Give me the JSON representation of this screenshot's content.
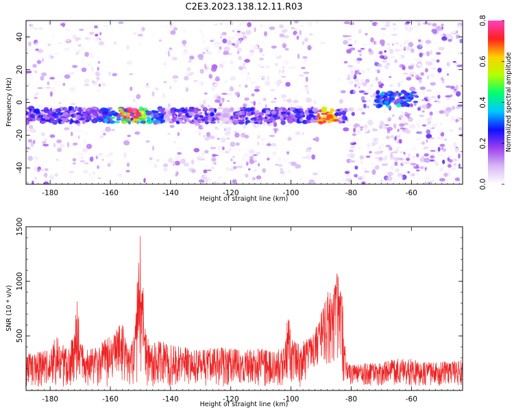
{
  "figure": {
    "title": "C2E3.2023.138.12.11.R03"
  },
  "chart_data": [
    {
      "type": "heatmap",
      "xlabel": "Height of straight line (km)",
      "ylabel": "Frequency (Hz)",
      "xlim": [
        -188,
        -43
      ],
      "ylim": [
        -50,
        50
      ],
      "xticks": [
        -180,
        -160,
        -140,
        -120,
        -100,
        -80,
        -60
      ],
      "yticks": [
        -40,
        -20,
        0,
        20,
        40
      ],
      "colorbar": {
        "label": "Normalized spectral amplitude",
        "range": [
          0.0,
          0.8
        ],
        "ticks": [
          0.0,
          0.2,
          0.4,
          0.6,
          0.8
        ],
        "colors": [
          "#ffffff",
          "#d8b8f4",
          "#9a40ee",
          "#1010ff",
          "#00c8ff",
          "#00ff70",
          "#b4ff00",
          "#ffd000",
          "#ff2020",
          "#ff40c0"
        ]
      },
      "features": [
        {
          "from_km": -188,
          "to_km": -82,
          "freq_hz": -8,
          "peak_amplitude": 0.75,
          "peak_at_km": -153
        },
        {
          "from_km": -72,
          "to_km": -58,
          "freq_hz": 2,
          "peak_amplitude": 0.3,
          "peak_at_km": -66
        }
      ]
    },
    {
      "type": "line",
      "xlabel": "Height of straight line (km)",
      "ylabel": "SNR (10 * v/v)",
      "xlim": [
        -188,
        -43
      ],
      "ylim": [
        0,
        1500
      ],
      "xticks": [
        -180,
        -160,
        -140,
        -120,
        -100,
        -80,
        -60
      ],
      "yticks": [
        500,
        1000,
        1500
      ],
      "series": [
        {
          "color": "#ee2222",
          "envelope_km": [
            -188,
            -184,
            -180,
            -178,
            -176,
            -174,
            -172,
            -171,
            -170,
            -168,
            -165,
            -162,
            -158,
            -156,
            -154,
            -152,
            -151,
            -150,
            -149,
            -148,
            -146,
            -144,
            -140,
            -135,
            -130,
            -125,
            -120,
            -115,
            -110,
            -105,
            -102,
            -101,
            -100,
            -98,
            -96,
            -94,
            -92,
            -90,
            -88,
            -86,
            -85,
            -84,
            -83,
            -82,
            -81,
            -80,
            -75,
            -70,
            -65,
            -60,
            -55,
            -50,
            -43
          ],
          "envelope_snr": [
            340,
            360,
            380,
            520,
            430,
            380,
            540,
            920,
            450,
            380,
            390,
            470,
            560,
            650,
            400,
            500,
            1050,
            1480,
            900,
            500,
            420,
            480,
            440,
            400,
            380,
            400,
            390,
            370,
            390,
            360,
            420,
            720,
            520,
            440,
            460,
            480,
            560,
            720,
            900,
            1000,
            1100,
            1060,
            900,
            380,
            250,
            240,
            250,
            260,
            300,
            290,
            260,
            260,
            280
          ]
        }
      ]
    }
  ]
}
